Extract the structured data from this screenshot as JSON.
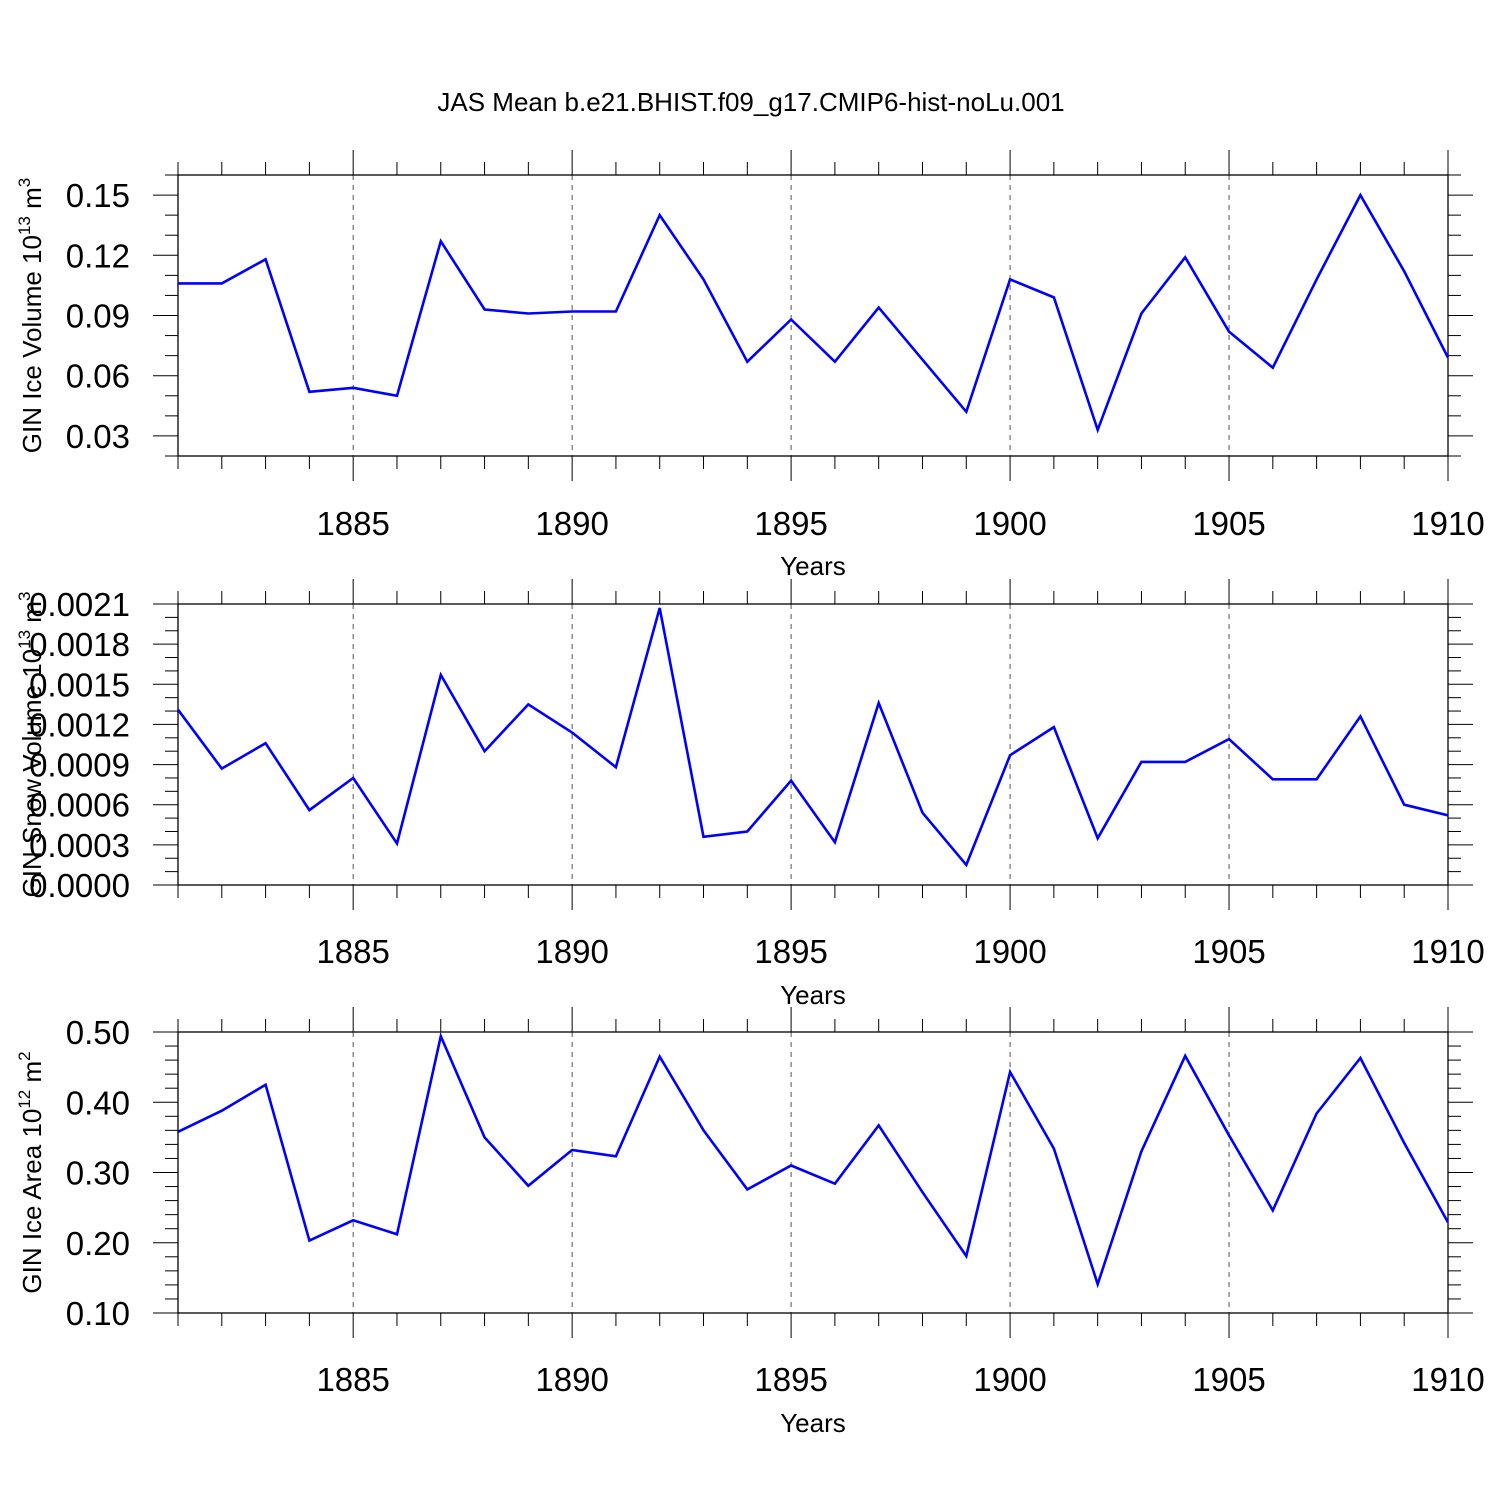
{
  "title": "JAS Mean b.e21.BHIST.f09_g17.CMIP6-hist-noLu.001",
  "colors": {
    "line": "#0000ff",
    "axes": "#000000",
    "grid": "#555555",
    "background": "#ffffff"
  },
  "chart_data": [
    {
      "type": "line",
      "ylabel_main": "GIN Ice Volume 10",
      "ylabel_exp": "13",
      "ylabel_unit": " m",
      "ylabel_unit_exp": "3",
      "xlabel": "Years",
      "xlim": [
        1881,
        1910
      ],
      "ylim": [
        0.02,
        0.16
      ],
      "x_ticks": [
        1885,
        1890,
        1895,
        1900,
        1905,
        1910
      ],
      "y_ticks": [
        0.03,
        0.06,
        0.09,
        0.12,
        0.15
      ],
      "y_tick_labels": [
        "0.03",
        "0.06",
        "0.09",
        "0.12",
        "0.15"
      ],
      "y_minor_step": 0.01,
      "grid_x": true,
      "x": [
        1881,
        1882,
        1883,
        1884,
        1885,
        1886,
        1887,
        1888,
        1889,
        1890,
        1891,
        1892,
        1893,
        1894,
        1895,
        1896,
        1897,
        1898,
        1899,
        1900,
        1901,
        1902,
        1903,
        1904,
        1905,
        1906,
        1907,
        1908,
        1909,
        1910
      ],
      "values": [
        0.106,
        0.106,
        0.118,
        0.052,
        0.054,
        0.05,
        0.127,
        0.093,
        0.091,
        0.092,
        0.092,
        0.14,
        0.108,
        0.067,
        0.088,
        0.067,
        0.094,
        0.068,
        0.042,
        0.108,
        0.099,
        0.033,
        0.091,
        0.119,
        0.082,
        0.064,
        0.108,
        0.15,
        0.112,
        0.069
      ]
    },
    {
      "type": "line",
      "ylabel_main": "GIN Snow Volume 10",
      "ylabel_exp": "13",
      "ylabel_unit": " m",
      "ylabel_unit_exp": "3",
      "xlabel": "Years",
      "xlim": [
        1881,
        1910
      ],
      "ylim": [
        0.0,
        0.0021
      ],
      "x_ticks": [
        1885,
        1890,
        1895,
        1900,
        1905,
        1910
      ],
      "y_ticks": [
        0.0,
        0.0003,
        0.0006,
        0.0009,
        0.0012,
        0.0015,
        0.0018,
        0.0021
      ],
      "y_tick_labels": [
        "0.0000",
        "0.0003",
        "0.0006",
        "0.0009",
        "0.0012",
        "0.0015",
        "0.0018",
        "0.0021"
      ],
      "y_minor_step": 0.0001,
      "grid_x": true,
      "x": [
        1881,
        1882,
        1883,
        1884,
        1885,
        1886,
        1887,
        1888,
        1889,
        1890,
        1891,
        1892,
        1893,
        1894,
        1895,
        1896,
        1897,
        1898,
        1899,
        1900,
        1901,
        1902,
        1903,
        1904,
        1905,
        1906,
        1907,
        1908,
        1909,
        1910
      ],
      "values": [
        0.00131,
        0.00087,
        0.00106,
        0.00056,
        0.0008,
        0.00031,
        0.00157,
        0.001,
        0.00135,
        0.00114,
        0.00088,
        0.00207,
        0.00036,
        0.0004,
        0.00078,
        0.00032,
        0.00136,
        0.00054,
        0.00015,
        0.00097,
        0.00118,
        0.00035,
        0.00092,
        0.00092,
        0.00109,
        0.00079,
        0.00079,
        0.00126,
        0.0006,
        0.00052
      ]
    },
    {
      "type": "line",
      "ylabel_main": "GIN Ice Area 10",
      "ylabel_exp": "12",
      "ylabel_unit": " m",
      "ylabel_unit_exp": "2",
      "xlabel": "Years",
      "xlim": [
        1881,
        1910
      ],
      "ylim": [
        0.1,
        0.5
      ],
      "x_ticks": [
        1885,
        1890,
        1895,
        1900,
        1905,
        1910
      ],
      "y_ticks": [
        0.1,
        0.2,
        0.3,
        0.4,
        0.5
      ],
      "y_tick_labels": [
        "0.10",
        "0.20",
        "0.30",
        "0.40",
        "0.50"
      ],
      "y_minor_step": 0.02,
      "grid_x": true,
      "x": [
        1881,
        1882,
        1883,
        1884,
        1885,
        1886,
        1887,
        1888,
        1889,
        1890,
        1891,
        1892,
        1893,
        1894,
        1895,
        1896,
        1897,
        1898,
        1899,
        1900,
        1901,
        1902,
        1903,
        1904,
        1905,
        1906,
        1907,
        1908,
        1909,
        1910
      ],
      "values": [
        0.358,
        0.388,
        0.425,
        0.203,
        0.232,
        0.212,
        0.494,
        0.35,
        0.281,
        0.332,
        0.323,
        0.465,
        0.36,
        0.276,
        0.31,
        0.284,
        0.367,
        0.272,
        0.181,
        0.443,
        0.334,
        0.141,
        0.33,
        0.466,
        0.353,
        0.246,
        0.384,
        0.463,
        0.342,
        0.229
      ]
    }
  ]
}
